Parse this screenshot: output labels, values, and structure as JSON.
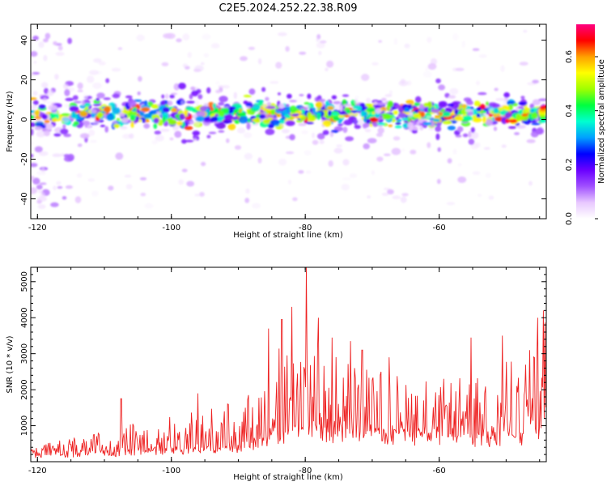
{
  "title": "C2E5.2024.252.22.38.R09",
  "colors": {
    "frame": "#000000",
    "background": "#ffffff",
    "snr_line": "#ee2222"
  },
  "colorbar": {
    "label": "Normalized spectral amplitude",
    "range": [
      0.0,
      0.72
    ],
    "ticks": [
      "0.0",
      "0.2",
      "0.4",
      "0.6"
    ],
    "tick_values": [
      0.0,
      0.2,
      0.4,
      0.6
    ],
    "colormap": [
      "#ffffff",
      "#e8c8ff",
      "#a050ff",
      "#6a00ff",
      "#0000ff",
      "#00a0ff",
      "#00ffd0",
      "#00ff40",
      "#a0ff00",
      "#ffff00",
      "#ffa000",
      "#ff0000",
      "#ff0080"
    ]
  },
  "chart_data": [
    {
      "type": "heatmap",
      "title": "C2E5.2024.252.22.38.R09",
      "xlabel": "Height of straight line (km)",
      "ylabel": "Frequency (Hz)",
      "xlim": [
        -121,
        -44
      ],
      "ylim": [
        -50,
        48
      ],
      "x_ticks": [
        -120,
        -100,
        -80,
        -60
      ],
      "x_tick_labels": [
        "-120",
        "-100",
        "-80",
        "-60"
      ],
      "y_ticks": [
        40,
        20,
        0,
        -20,
        -40
      ],
      "y_tick_labels": [
        "40",
        "20",
        "0",
        "-20",
        "-40"
      ],
      "band_center_hz": 3,
      "band_halfwidth_hz": 8,
      "peak_amplitude": 0.68,
      "scatter_extent_hz": 45
    },
    {
      "type": "line",
      "xlabel": "Height of straight line (km)",
      "ylabel": "SNR (10 * v/v)",
      "xlim": [
        -121,
        -44
      ],
      "ylim": [
        0,
        5400
      ],
      "x_ticks": [
        -120,
        -100,
        -80,
        -60
      ],
      "x_tick_labels": [
        "-120",
        "-100",
        "-80",
        "-60"
      ],
      "y_ticks": [
        1000,
        2000,
        3000,
        4000,
        5000
      ],
      "y_tick_labels": [
        "1000",
        "2000",
        "3000",
        "4000",
        "5000"
      ],
      "sample_step_km": 0.12,
      "envelope": {
        "x": [
          -121,
          -115,
          -110,
          -105,
          -100,
          -95,
          -90,
          -87,
          -85,
          -82,
          -80,
          -78,
          -75,
          -70,
          -65,
          -60,
          -55,
          -50,
          -47,
          -45,
          -44
        ],
        "y": [
          400,
          700,
          900,
          1100,
          1300,
          1500,
          1700,
          2100,
          3000,
          3800,
          3500,
          3200,
          3000,
          2600,
          2500,
          2300,
          2400,
          2800,
          3000,
          3600,
          4000
        ]
      },
      "floor": {
        "x": [
          -121,
          -100,
          -90,
          -85,
          -80,
          -70,
          -60,
          -50,
          -44
        ],
        "y": [
          150,
          300,
          400,
          700,
          900,
          800,
          700,
          600,
          900
        ]
      },
      "peaks": [
        {
          "x": -79.8,
          "y": 5400
        },
        {
          "x": -82.0,
          "y": 4300
        },
        {
          "x": -83.5,
          "y": 3950
        },
        {
          "x": -78.0,
          "y": 4000
        },
        {
          "x": -85.5,
          "y": 3700
        },
        {
          "x": -76.0,
          "y": 3450
        },
        {
          "x": -73.2,
          "y": 3350
        },
        {
          "x": -71.5,
          "y": 3100
        },
        {
          "x": -67.5,
          "y": 2900
        },
        {
          "x": -55.2,
          "y": 3450
        },
        {
          "x": -50.6,
          "y": 3500
        },
        {
          "x": -46.5,
          "y": 3100
        },
        {
          "x": -45.3,
          "y": 4000
        },
        {
          "x": -44.4,
          "y": 4200
        },
        {
          "x": -107.5,
          "y": 1750
        },
        {
          "x": -96.0,
          "y": 1900
        },
        {
          "x": -88.5,
          "y": 1850
        }
      ]
    }
  ]
}
